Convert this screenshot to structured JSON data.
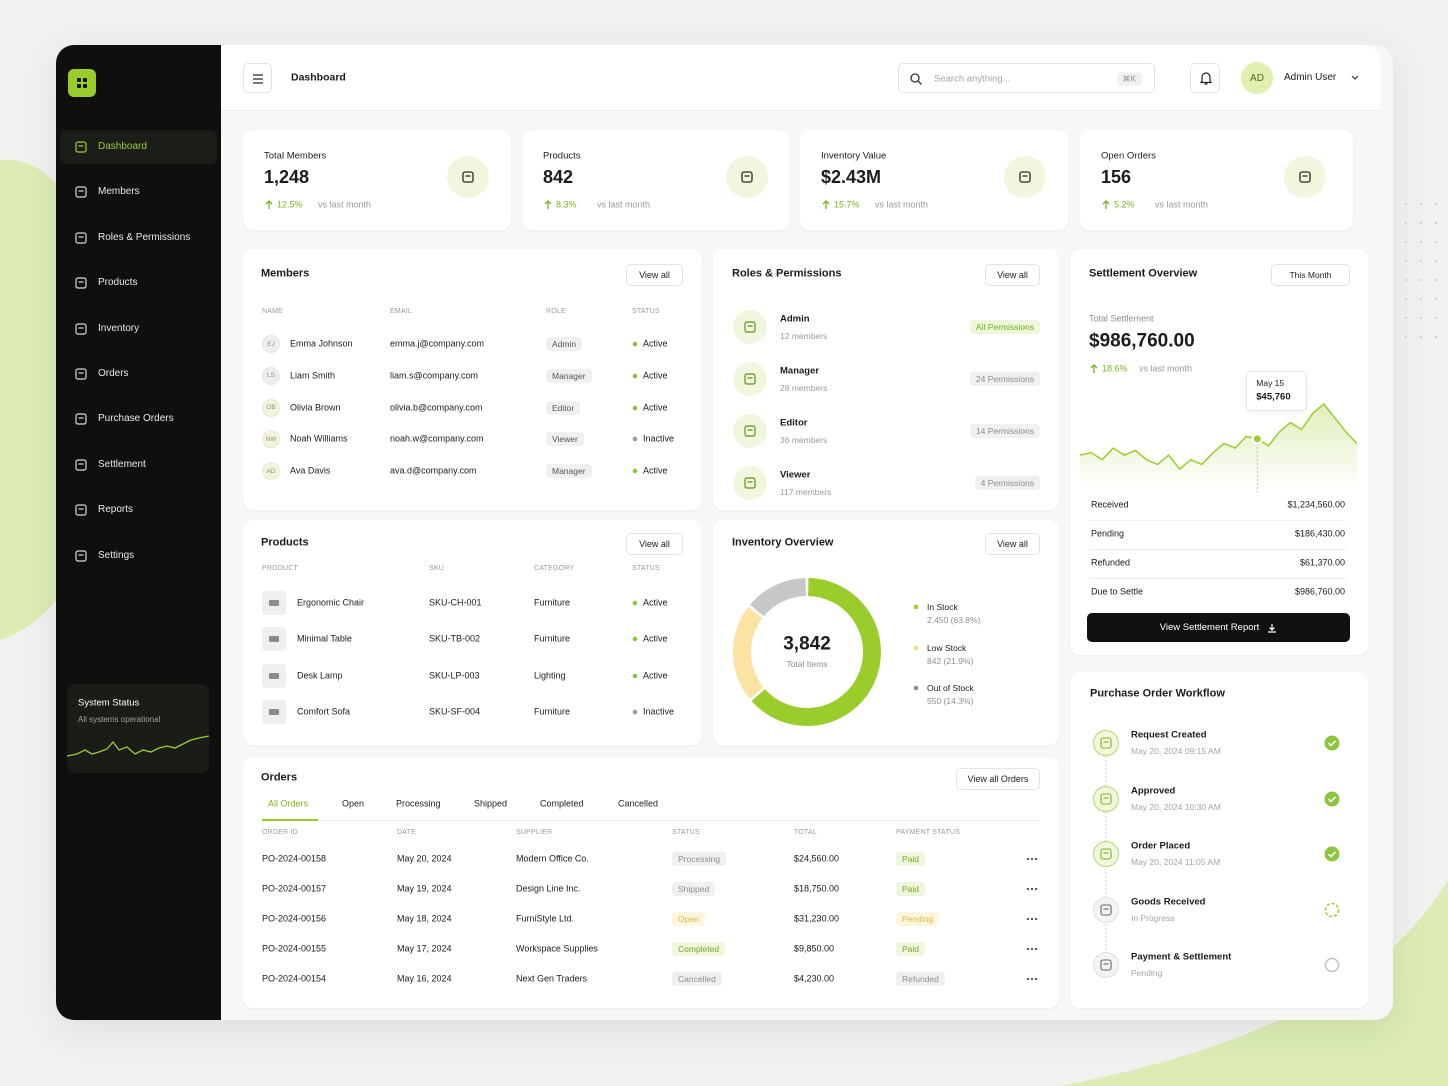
{
  "sidebar": {
    "nav": [
      {
        "label": "Dashboard",
        "active": true
      },
      {
        "label": "Members"
      },
      {
        "label": "Roles & Permissions"
      },
      {
        "label": "Products"
      },
      {
        "label": "Inventory"
      },
      {
        "label": "Orders"
      },
      {
        "label": "Purchase Orders"
      },
      {
        "label": "Settlement"
      },
      {
        "label": "Reports"
      },
      {
        "label": "Settings"
      }
    ],
    "status": {
      "title": "System Status",
      "text": "All systems operational"
    }
  },
  "header": {
    "title": "Dashboard",
    "search": "Search anything...",
    "shortcut": "⌘K",
    "avatar": "AD",
    "user": "Admin User"
  },
  "stats": [
    {
      "label": "Total Members",
      "value": "1,248",
      "change": "12.5%",
      "note": "vs last month"
    },
    {
      "label": "Products",
      "value": "842",
      "change": "8.3%",
      "note": "vs last month"
    },
    {
      "label": "Inventory Value",
      "value": "$2.43M",
      "change": "15.7%",
      "note": "vs last month"
    },
    {
      "label": "Open Orders",
      "value": "156",
      "change": "5.2%",
      "note": "vs last month"
    }
  ],
  "members": {
    "title": "Members",
    "action": "View all",
    "columns": [
      "NAME",
      "EMAIL",
      "ROLE",
      "STATUS"
    ],
    "rows": [
      {
        "initials": "EJ",
        "avatar_color": "#eeeeec",
        "name": "Emma Johnson",
        "email": "emma.j@company.com",
        "role": "Admin",
        "status": "Active",
        "tone": "green"
      },
      {
        "initials": "LS",
        "avatar_color": "#eeeeec",
        "name": "Liam Smith",
        "email": "liam.s@company.com",
        "role": "Manager",
        "status": "Active",
        "tone": "green"
      },
      {
        "initials": "OB",
        "avatar_color": "#eef7d8",
        "name": "Olivia Brown",
        "email": "olivia.b@company.com",
        "role": "Editor",
        "status": "Active",
        "tone": "green"
      },
      {
        "initials": "NW",
        "avatar_color": "#f8f4dc",
        "name": "Noah Williams",
        "email": "noah.w@company.com",
        "role": "Viewer",
        "status": "Inactive",
        "tone": "gray"
      },
      {
        "initials": "AD",
        "avatar_color": "#eef7d8",
        "name": "Ava Davis",
        "email": "ava.d@company.com",
        "role": "Manager",
        "status": "Active",
        "tone": "green"
      }
    ]
  },
  "roles": {
    "title": "Roles & Permissions",
    "action": "View all",
    "items": [
      {
        "name": "Admin",
        "members": "12 members",
        "permissions": "All Permissions",
        "tone": "green"
      },
      {
        "name": "Manager",
        "members": "28 members",
        "permissions": "24 Permissions",
        "tone": "gray"
      },
      {
        "name": "Editor",
        "members": "36 members",
        "permissions": "14 Permissions",
        "tone": "gray"
      },
      {
        "name": "Viewer",
        "members": "117 members",
        "permissions": "4 Permissions",
        "tone": "gray"
      }
    ]
  },
  "settlement": {
    "title": "Settlement Overview",
    "period": "This Month",
    "label": "Total Settlement",
    "total": "$986,760.00",
    "change": "18.6%",
    "note": "vs last month",
    "tooltip": {
      "date": "May 15",
      "value": "$45,760"
    },
    "trend": [
      30,
      31,
      28,
      33,
      30,
      32,
      28,
      26,
      30,
      24,
      28,
      26,
      31,
      35,
      33,
      38,
      37,
      34,
      40,
      44,
      41,
      48,
      52,
      46,
      40,
      35
    ],
    "rows": [
      {
        "label": "Received",
        "value": "$1,234,560.00"
      },
      {
        "label": "Pending",
        "value": "$186,430.00"
      },
      {
        "label": "Refunded",
        "value": "$61,370.00"
      },
      {
        "label": "Due to Settle",
        "value": "$986,760.00"
      }
    ],
    "button": "View Settlement Report"
  },
  "products": {
    "title": "Products",
    "action": "View all",
    "columns": [
      "PRODUCT",
      "SKU",
      "CATEGORY",
      "STATUS"
    ],
    "rows": [
      {
        "name": "Ergonomic Chair",
        "sku": "SKU-CH-001",
        "category": "Furniture",
        "status": "Active",
        "tone": "green"
      },
      {
        "name": "Minimal Table",
        "sku": "SKU-TB-002",
        "category": "Furniture",
        "status": "Active",
        "tone": "green"
      },
      {
        "name": "Desk Lamp",
        "sku": "SKU-LP-003",
        "category": "Lighting",
        "status": "Active",
        "tone": "green"
      },
      {
        "name": "Comfort Sofa",
        "sku": "SKU-SF-004",
        "category": "Furniture",
        "status": "Inactive",
        "tone": "gray"
      }
    ]
  },
  "inventory": {
    "title": "Inventory Overview",
    "action": "View all",
    "total": "3,842",
    "total_label": "Total Items",
    "segments": [
      {
        "name": "In Stock",
        "value": 63.8,
        "value_label": "2,450 (63.8%)",
        "color": "#9acd2c"
      },
      {
        "name": "Low Stock",
        "value": 21.9,
        "value_label": "842 (21.9%)",
        "color": "#fbe3a4"
      },
      {
        "name": "Out of Stock",
        "value": 14.3,
        "value_label": "550 (14.3%)",
        "color": "#c7c8c5"
      }
    ]
  },
  "orders": {
    "title": "Orders",
    "action": "View all Orders",
    "tabs": [
      {
        "label": "All Orders",
        "active": true
      },
      {
        "label": "Open"
      },
      {
        "label": "Processing"
      },
      {
        "label": "Shipped"
      },
      {
        "label": "Completed"
      },
      {
        "label": "Cancelled"
      }
    ],
    "columns": [
      "ORDER ID",
      "DATE",
      "SUPPLIER",
      "STATUS",
      "TOTAL",
      "PAYMENT STATUS"
    ],
    "rows": [
      {
        "id": "PO-2024-00158",
        "date": "May 20, 2024",
        "supplier": "Modern Office Co.",
        "status": {
          "text": "Processing",
          "tone": "gray"
        },
        "total": "$24,560.00",
        "payment": {
          "text": "Paid",
          "tone": "green"
        }
      },
      {
        "id": "PO-2024-00157",
        "date": "May 19, 2024",
        "supplier": "Design Line Inc.",
        "status": {
          "text": "Shipped",
          "tone": "gray"
        },
        "total": "$18,750.00",
        "payment": {
          "text": "Paid",
          "tone": "green"
        }
      },
      {
        "id": "PO-2024-00156",
        "date": "May 18, 2024",
        "supplier": "FurniStyle Ltd.",
        "status": {
          "text": "Open",
          "tone": "yellow"
        },
        "total": "$31,230.00",
        "payment": {
          "text": "Pending",
          "tone": "yellow"
        }
      },
      {
        "id": "PO-2024-00155",
        "date": "May 17, 2024",
        "supplier": "Workspace Supplies",
        "status": {
          "text": "Completed",
          "tone": "green"
        },
        "total": "$9,850.00",
        "payment": {
          "text": "Paid",
          "tone": "green"
        }
      },
      {
        "id": "PO-2024-00154",
        "date": "May 16, 2024",
        "supplier": "Next Gen Traders",
        "status": {
          "text": "Cancelled",
          "tone": "gray"
        },
        "total": "$4,230.00",
        "payment": {
          "text": "Refunded",
          "tone": "gray"
        }
      }
    ]
  },
  "workflow": {
    "title": "Purchase Order Workflow",
    "steps": [
      {
        "name": "Request Created",
        "detail": "May 20, 2024 09:15 AM",
        "state": "done"
      },
      {
        "name": "Approved",
        "detail": "May 20, 2024 10:30 AM",
        "state": "done"
      },
      {
        "name": "Order Placed",
        "detail": "May 20, 2024 11:05 AM",
        "state": "done"
      },
      {
        "name": "Goods Received",
        "detail": "In Progress",
        "state": "progress"
      },
      {
        "name": "Payment & Settlement",
        "detail": "Pending",
        "state": "pending"
      }
    ]
  }
}
